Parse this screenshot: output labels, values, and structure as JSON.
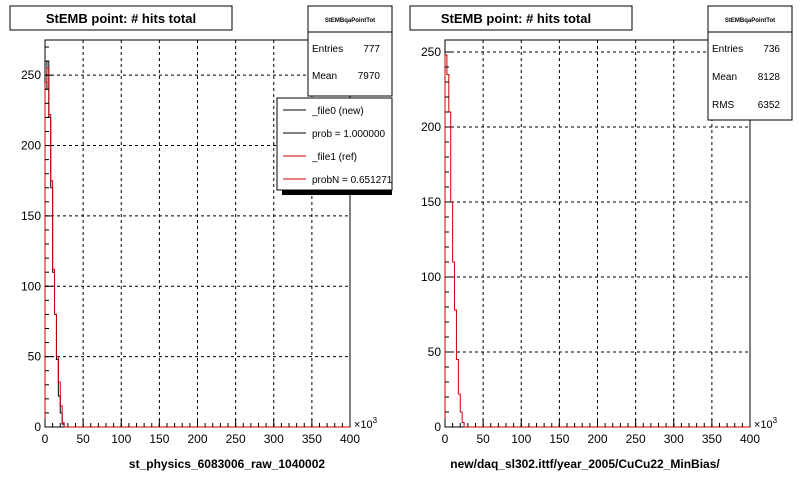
{
  "chart_data": [
    {
      "type": "histogram",
      "title": "StEMB point: # hits total",
      "xlabel": "st_physics_6083006_raw_1040002",
      "x_multiplier": "×10",
      "x_multiplier_exp": "3",
      "x_range": [
        0,
        400
      ],
      "y_range": [
        0,
        275
      ],
      "x_ticks": [
        0,
        50,
        100,
        150,
        200,
        250,
        300,
        350,
        400
      ],
      "y_ticks": [
        0,
        50,
        100,
        150,
        200,
        250
      ],
      "grid": true,
      "stats": {
        "name": "StEMBqaPointTot",
        "rows": [
          {
            "label": "Entries",
            "value": "777"
          },
          {
            "label": "Mean",
            "value": "7970"
          }
        ]
      },
      "legend": {
        "placement": "top-right",
        "entries": [
          {
            "label": "_file0 (new)",
            "color": "#000000"
          },
          {
            "label": "prob = 1.000000",
            "color": "#000000"
          },
          {
            "label": "_file1 (ref)",
            "color": "#cc0000"
          },
          {
            "label": "probN = 0.651271",
            "color": "#cc0000"
          }
        ]
      },
      "series": [
        {
          "color": "#000000",
          "bin_width": 2.5,
          "values": [
            240,
            260,
            220,
            170,
            110,
            80,
            48,
            22,
            10,
            2
          ]
        },
        {
          "color": "#cc0000",
          "bin_width": 2.5,
          "values": [
            245,
            255,
            222,
            175,
            112,
            80,
            50,
            32,
            15,
            3
          ]
        }
      ]
    },
    {
      "type": "histogram",
      "title": "StEMB point: # hits total",
      "xlabel": "new/daq_sl302.ittf/year_2005/CuCu22_MinBias/",
      "x_multiplier": "×10",
      "x_multiplier_exp": "3",
      "x_range": [
        0,
        400
      ],
      "y_range": [
        0,
        258
      ],
      "x_ticks": [
        0,
        50,
        100,
        150,
        200,
        250,
        300,
        350,
        400
      ],
      "y_ticks": [
        0,
        50,
        100,
        150,
        200,
        250
      ],
      "grid": true,
      "stats": {
        "name": "StEMBqaPointTot",
        "rows": [
          {
            "label": "Entries",
            "value": "736"
          },
          {
            "label": "Mean",
            "value": "8128"
          },
          {
            "label": "RMS",
            "value": "6352"
          }
        ]
      },
      "series": [
        {
          "color": "#cc0000",
          "bin_width": 2.5,
          "values": [
            248,
            235,
            210,
            150,
            110,
            78,
            45,
            22,
            10,
            3
          ]
        }
      ]
    }
  ]
}
